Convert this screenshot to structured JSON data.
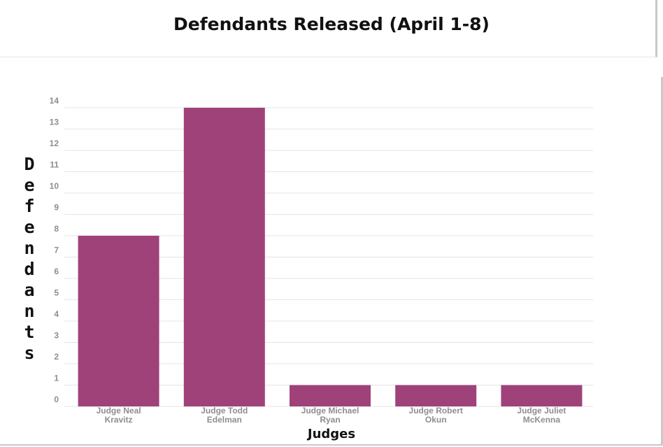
{
  "chart_data": {
    "type": "bar",
    "title": "Defendants Released (April 1-8)",
    "xlabel": "Judges",
    "ylabel": "Defendants",
    "categories": [
      [
        "Judge Neal",
        "Kravitz"
      ],
      [
        "Judge Todd",
        "Edelman"
      ],
      [
        "Judge Michael",
        "Ryan"
      ],
      [
        "Judge Robert",
        "Okun"
      ],
      [
        "Judge Juliet",
        "McKenna"
      ]
    ],
    "values": [
      8,
      14,
      1,
      1,
      1
    ],
    "ylim": [
      0,
      14
    ],
    "yticks": [
      0,
      1,
      2,
      3,
      4,
      5,
      6,
      7,
      8,
      9,
      10,
      11,
      12,
      13,
      14
    ],
    "grid": true,
    "bar_color": "#a0427a"
  }
}
